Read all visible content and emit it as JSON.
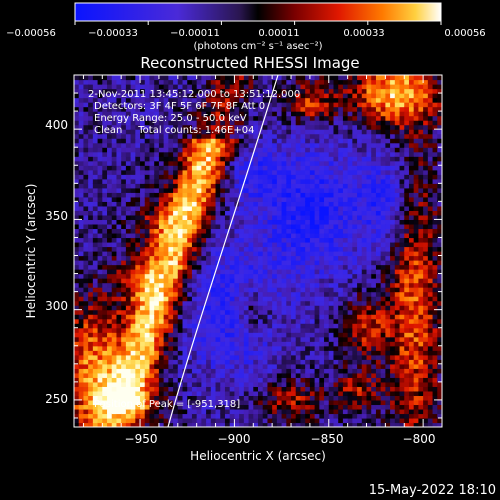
{
  "colorbar": {
    "tick_labels": [
      "−0.00056",
      "−0.00033",
      "−0.00011",
      "0.00011",
      "0.00033",
      "0.00056"
    ],
    "unit_label": "(photons cm⁻² s⁻¹ asec⁻²)"
  },
  "chart_data": {
    "type": "heatmap",
    "title": "Reconstructed RHESSI Image",
    "xlabel": "Heliocentric X (arcsec)",
    "ylabel": "Heliocentric Y (arcsec)",
    "xlim": [
      -985,
      -790
    ],
    "ylim": [
      235,
      430
    ],
    "x_ticks": [
      -950,
      -900,
      -850,
      -800
    ],
    "x_tick_labels": [
      "−950",
      "−900",
      "−850",
      "−800"
    ],
    "y_ticks": [
      250,
      300,
      350,
      400
    ],
    "y_tick_labels": [
      "250",
      "300",
      "350",
      "400"
    ],
    "colorscale_range": [
      -0.00056,
      0.00056
    ],
    "annotations": [
      "2-Nov-2011 13:45:12.000 to 13:51:12.000",
      "Detectors: 3F 4F 5F 6F 7F 8F  Att 0",
      "Energy Range: 25.0 - 50.0 keV",
      "Clean     Total counts: 1.46E+04"
    ],
    "peak_label": "Position of Peak = [-951,318]",
    "peak_position": [
      -951,
      318
    ]
  },
  "timestamp": "15-May-2022 18:10"
}
